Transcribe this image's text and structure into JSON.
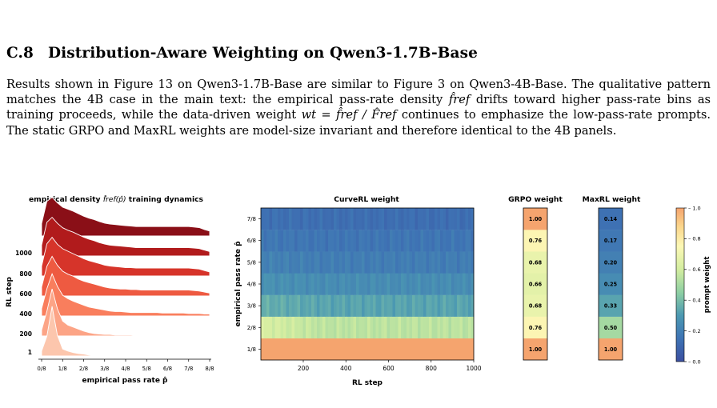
{
  "section": {
    "number": "C.8",
    "title": "Distribution-Aware Weighting on Qwen3-1.7B-Base"
  },
  "paragraph": {
    "sentences": [
      "Results shown in Figure 13 on Qwen3-1.7B-Base are similar to Figure 3 on Qwen3-4B-Base. The qualitative pattern matches the 4B case in the main text: the empirical pass-rate density",
      "drifts toward higher pass-rate bins as training proceeds, while the data-driven weight",
      "continues to emphasize the low-pass-rate prompts. The static GRPO and MaxRL weights are model-size invariant and therefore identical to the 4B panels."
    ],
    "math_fref": "f̂ref",
    "math_weight": "wt = f̂ref / F̂ref"
  },
  "colors": {
    "ridge_stroke": "#ffffff",
    "orange": "#f5a46e",
    "heat_low": "#3b4fa0"
  },
  "chart_data": [
    {
      "type": "area",
      "title": "empirical density f̂ref(p̂) training dynamics",
      "title_prefix": "empirical density ",
      "title_math": "f̂ref(p̂)",
      "title_suffix": " training dynamics",
      "xlabel": "empirical pass rate p̂",
      "ylabel": "RL step",
      "x_ticks": [
        "0/8",
        "1/8",
        "2/8",
        "3/8",
        "4/8",
        "5/8",
        "6/8",
        "7/8",
        "8/8"
      ],
      "y_ticks": [
        "1",
        "200",
        "400",
        "600",
        "800",
        "1000"
      ],
      "ridge_colors": [
        "#fcc6ad",
        "#fca486",
        "#f97e5d",
        "#ee5a41",
        "#d6342a",
        "#b11b1c",
        "#8a0f17"
      ],
      "series": [
        {
          "values": [
            0.1,
            0.4,
            1.0,
            0.42,
            0.14,
            0.1,
            0.07,
            0.05,
            0.04,
            0.02,
            0.01,
            0.0,
            0.0,
            0.0,
            0.0,
            0.0,
            0.0,
            0.0,
            0.0,
            0.0,
            0.0,
            0.0,
            0.0,
            0.0,
            0.0,
            0.0,
            0.0,
            0.0,
            0.0,
            0.0,
            0.0,
            0.0,
            0.0
          ]
        },
        {
          "values": [
            0.12,
            0.5,
            0.95,
            0.55,
            0.3,
            0.22,
            0.18,
            0.14,
            0.1,
            0.07,
            0.05,
            0.04,
            0.03,
            0.03,
            0.02,
            0.02,
            0.02,
            0.02,
            0.01,
            0.01,
            0.01,
            0.01,
            0.01,
            0.01,
            0.01,
            0.01,
            0.0,
            0.0,
            0.0,
            0.0,
            0.0,
            0.0,
            0.0
          ]
        },
        {
          "values": [
            0.15,
            0.55,
            0.85,
            0.6,
            0.42,
            0.35,
            0.3,
            0.26,
            0.22,
            0.18,
            0.16,
            0.14,
            0.12,
            0.1,
            0.09,
            0.09,
            0.08,
            0.07,
            0.07,
            0.07,
            0.07,
            0.07,
            0.07,
            0.06,
            0.06,
            0.06,
            0.06,
            0.06,
            0.05,
            0.05,
            0.05,
            0.04,
            0.04
          ]
        },
        {
          "values": [
            0.18,
            0.6,
            0.8,
            0.62,
            0.5,
            0.44,
            0.4,
            0.34,
            0.3,
            0.27,
            0.24,
            0.21,
            0.18,
            0.16,
            0.15,
            0.14,
            0.14,
            0.13,
            0.13,
            0.12,
            0.12,
            0.12,
            0.12,
            0.12,
            0.12,
            0.12,
            0.12,
            0.12,
            0.12,
            0.11,
            0.1,
            0.08,
            0.06
          ]
        },
        {
          "values": [
            0.2,
            0.65,
            0.78,
            0.64,
            0.55,
            0.5,
            0.45,
            0.4,
            0.35,
            0.31,
            0.28,
            0.25,
            0.22,
            0.2,
            0.19,
            0.18,
            0.17,
            0.17,
            0.16,
            0.16,
            0.16,
            0.16,
            0.16,
            0.16,
            0.16,
            0.16,
            0.16,
            0.16,
            0.16,
            0.15,
            0.14,
            0.11,
            0.08
          ]
        },
        {
          "values": [
            0.22,
            0.68,
            0.78,
            0.66,
            0.57,
            0.52,
            0.48,
            0.43,
            0.38,
            0.34,
            0.31,
            0.27,
            0.24,
            0.22,
            0.21,
            0.2,
            0.19,
            0.18,
            0.17,
            0.17,
            0.17,
            0.17,
            0.17,
            0.17,
            0.17,
            0.17,
            0.17,
            0.17,
            0.17,
            0.16,
            0.15,
            0.12,
            0.09
          ]
        },
        {
          "values": [
            0.25,
            0.7,
            0.78,
            0.67,
            0.58,
            0.54,
            0.5,
            0.45,
            0.4,
            0.36,
            0.33,
            0.29,
            0.26,
            0.24,
            0.23,
            0.22,
            0.21,
            0.2,
            0.19,
            0.19,
            0.19,
            0.19,
            0.19,
            0.19,
            0.19,
            0.19,
            0.19,
            0.19,
            0.19,
            0.18,
            0.17,
            0.13,
            0.1
          ]
        }
      ]
    },
    {
      "type": "heatmap",
      "title": "CurveRL weight",
      "xlabel": "RL step",
      "ylabel": "empirical pass rate p̂",
      "x_ticks": [
        "200",
        "400",
        "600",
        "800",
        "1000"
      ],
      "x_tick_values": [
        200,
        400,
        600,
        800,
        1000
      ],
      "xlim": [
        1,
        1000
      ],
      "y_ticks": [
        "1/8",
        "2/8",
        "3/8",
        "4/8",
        "5/8",
        "6/8",
        "7/8"
      ],
      "row_weights": [
        1.0,
        0.55,
        0.33,
        0.25,
        0.19,
        0.16,
        0.13
      ],
      "row_weights_early": [
        1.0,
        0.62,
        0.36,
        0.27,
        0.21,
        0.17,
        0.14
      ],
      "vmin": 0.0,
      "vmax": 1.0
    },
    {
      "type": "heatmap",
      "title": "GRPO weight",
      "y_ticks": [
        "1/8",
        "2/8",
        "3/8",
        "4/8",
        "5/8",
        "6/8",
        "7/8"
      ],
      "values": [
        1.0,
        0.76,
        0.68,
        0.66,
        0.68,
        0.76,
        1.0
      ],
      "labels": [
        "1.00",
        "0.76",
        "0.68",
        "0.66",
        "0.68",
        "0.76",
        "1.00"
      ]
    },
    {
      "type": "heatmap",
      "title": "MaxRL weight",
      "y_ticks": [
        "1/8",
        "2/8",
        "3/8",
        "4/8",
        "5/8",
        "6/8",
        "7/8"
      ],
      "values": [
        1.0,
        0.5,
        0.33,
        0.25,
        0.2,
        0.17,
        0.14
      ],
      "labels": [
        "1.00",
        "0.50",
        "0.33",
        "0.25",
        "0.20",
        "0.17",
        "0.14"
      ]
    },
    {
      "type": "heatmap",
      "title": "colorbar",
      "ylabel": "prompt weight",
      "ticks": [
        "0.0",
        "0.2",
        "0.4",
        "0.6",
        "0.8",
        "1.0"
      ],
      "tick_values": [
        0.0,
        0.2,
        0.4,
        0.6,
        0.8,
        1.0
      ],
      "vmin": 0.0,
      "vmax": 1.0
    }
  ]
}
